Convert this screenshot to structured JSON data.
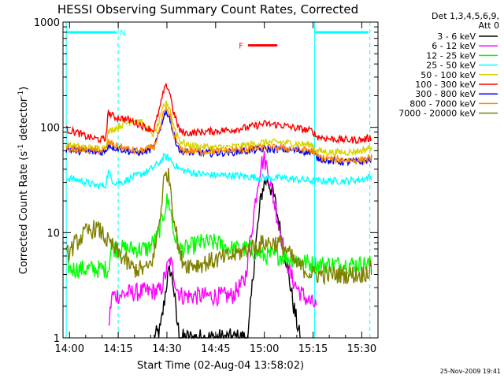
{
  "chart_data": {
    "type": "line",
    "title": "HESSI Observing Summary Count Rates, Corrected",
    "xlabel": "Start Time (02-Aug-04 13:58:02)",
    "ylabel": "Corrected Count Rate (s",
    "ylabel_sup1": "-1",
    "ylabel_mid": " detector",
    "ylabel_sup2": "-1",
    "ylabel_end": ")",
    "y_scale": "log",
    "ylim": [
      1,
      1000
    ],
    "xlim_minutes": [
      -2,
      95
    ],
    "x_unit_note": "minutes after 14:00",
    "x_ticks": [
      {
        "m": 0,
        "label": "14:00"
      },
      {
        "m": 15,
        "label": "14:15"
      },
      {
        "m": 30,
        "label": "14:30"
      },
      {
        "m": 45,
        "label": "14:45"
      },
      {
        "m": 60,
        "label": "15:00"
      },
      {
        "m": 75,
        "label": "15:15"
      },
      {
        "m": 90,
        "label": "15:30"
      }
    ],
    "y_ticks": [
      {
        "v": 1,
        "label": "1"
      },
      {
        "v": 10,
        "label": "10"
      },
      {
        "v": 100,
        "label": "100"
      },
      {
        "v": 1000,
        "label": "1000"
      }
    ],
    "legend_header": [
      "Det 1,3,4,5,6,9,",
      "Att 0"
    ],
    "series": [
      {
        "name": "3 - 6 keV",
        "color": "#000000",
        "x": [
          26,
          28,
          29,
          30,
          31,
          32,
          33,
          34,
          55,
          57,
          59,
          60,
          61,
          63,
          65,
          67,
          69,
          71
        ],
        "y": [
          1,
          1.2,
          2,
          3.5,
          4.5,
          3.2,
          1.5,
          1,
          1,
          6,
          22,
          30,
          32,
          22,
          10,
          5,
          2,
          1
        ]
      },
      {
        "name": "6 - 12 keV",
        "color": "#ff00ff",
        "x": [
          12,
          13,
          20,
          28,
          29,
          30,
          31,
          32,
          33,
          34,
          35,
          50,
          54,
          56,
          58,
          59,
          60,
          61,
          62,
          64,
          66,
          68,
          70,
          72,
          74,
          76
        ],
        "y": [
          1.2,
          2.5,
          2.7,
          2.8,
          3.5,
          4.5,
          5.5,
          4.2,
          3,
          2.6,
          2.5,
          2.5,
          3.5,
          10,
          30,
          45,
          50,
          40,
          28,
          14,
          7,
          4,
          3,
          2.5,
          2.2,
          2
        ]
      },
      {
        "name": "12 - 25 keV",
        "color": "#00ff00",
        "x": [
          -1,
          0,
          5,
          10,
          12,
          13,
          14,
          16,
          20,
          24,
          27,
          29,
          30,
          31,
          32,
          34,
          36,
          40,
          45,
          50,
          55,
          60,
          65,
          70,
          75,
          80,
          85,
          93
        ],
        "y": [
          6,
          4.5,
          4.5,
          4.5,
          4.5,
          8,
          7,
          7,
          7,
          7,
          9,
          15,
          20,
          18,
          10,
          7,
          7,
          8,
          8,
          7,
          7,
          6,
          6,
          5.5,
          5,
          5,
          5,
          5
        ]
      },
      {
        "name": "25 - 50 keV",
        "color": "#00ffff",
        "x": [
          -1,
          2,
          5,
          8,
          11,
          12,
          13,
          14,
          16,
          18,
          20,
          22,
          24,
          26,
          28,
          29,
          30,
          31,
          32,
          34,
          36,
          40,
          45,
          50,
          55,
          60,
          65,
          70,
          75,
          80,
          85,
          90,
          93
        ],
        "y": [
          33,
          32,
          30,
          28,
          28,
          38,
          32,
          30,
          30,
          32,
          34,
          36,
          38,
          42,
          47,
          52,
          52,
          50,
          45,
          40,
          38,
          36,
          35,
          35,
          34,
          33,
          33,
          32,
          31,
          31,
          31,
          32,
          34
        ]
      },
      {
        "name": "50 - 100 keV",
        "color": "#d4d400",
        "x": [
          -1,
          2,
          5,
          8,
          11,
          12,
          13,
          14,
          16,
          18,
          20,
          22,
          24,
          26,
          28,
          29,
          30,
          31,
          32,
          34,
          36,
          40,
          45,
          50,
          55,
          60,
          65,
          70,
          75,
          76,
          80,
          85,
          90,
          93
        ],
        "y": [
          68,
          66,
          64,
          63,
          65,
          90,
          95,
          98,
          105,
          112,
          118,
          112,
          98,
          85,
          120,
          160,
          170,
          150,
          105,
          75,
          68,
          66,
          64,
          65,
          68,
          72,
          72,
          70,
          68,
          60,
          58,
          58,
          60,
          65
        ]
      },
      {
        "name": "100 - 300 keV",
        "color": "#ff0000",
        "x": [
          -1,
          2,
          5,
          8,
          11,
          12,
          13,
          14,
          16,
          18,
          20,
          22,
          24,
          26,
          28,
          29,
          30,
          31,
          32,
          34,
          36,
          40,
          45,
          50,
          55,
          60,
          65,
          70,
          75,
          76,
          80,
          85,
          90,
          93
        ],
        "y": [
          95,
          90,
          82,
          78,
          76,
          140,
          130,
          125,
          122,
          118,
          112,
          105,
          98,
          95,
          160,
          220,
          250,
          210,
          140,
          92,
          88,
          90,
          92,
          95,
          100,
          108,
          105,
          98,
          92,
          82,
          78,
          76,
          76,
          80
        ]
      },
      {
        "name": "300 - 800 keV",
        "color": "#0000ff",
        "x": [
          -1,
          2,
          5,
          8,
          11,
          12,
          13,
          14,
          16,
          18,
          20,
          22,
          24,
          26,
          28,
          29,
          30,
          31,
          32,
          34,
          36,
          40,
          45,
          50,
          55,
          60,
          65,
          70,
          75,
          76,
          80,
          85,
          90,
          93
        ],
        "y": [
          62,
          60,
          59,
          58,
          58,
          68,
          66,
          64,
          62,
          60,
          58,
          58,
          60,
          64,
          95,
          130,
          140,
          120,
          85,
          60,
          58,
          57,
          57,
          58,
          60,
          62,
          62,
          60,
          58,
          52,
          48,
          47,
          47,
          50
        ]
      },
      {
        "name": "800 - 7000 keV",
        "color": "#ff8800",
        "x": [
          -1,
          2,
          5,
          8,
          11,
          12,
          13,
          14,
          16,
          18,
          20,
          22,
          24,
          26,
          28,
          29,
          30,
          31,
          32,
          34,
          36,
          40,
          45,
          50,
          55,
          60,
          65,
          70,
          75,
          76,
          80,
          85,
          90,
          93
        ],
        "y": [
          64,
          62,
          61,
          60,
          60,
          72,
          70,
          67,
          65,
          62,
          60,
          60,
          62,
          66,
          98,
          135,
          145,
          125,
          88,
          62,
          60,
          59,
          59,
          60,
          62,
          64,
          64,
          62,
          60,
          53,
          50,
          49,
          49,
          52
        ]
      },
      {
        "name": "7000 - 20000 keV",
        "color": "#808000",
        "x": [
          -1,
          2,
          5,
          8,
          10,
          12,
          14,
          16,
          18,
          20,
          22,
          24,
          26,
          28,
          29,
          30,
          31,
          32,
          34,
          36,
          40,
          45,
          50,
          55,
          60,
          65,
          70,
          75,
          80,
          85,
          90,
          93
        ],
        "y": [
          6,
          8,
          10,
          11,
          10,
          8,
          7,
          6,
          5,
          4.5,
          4.5,
          4.5,
          6,
          15,
          30,
          38,
          30,
          15,
          6,
          5,
          5,
          5.5,
          6,
          7,
          8,
          8,
          5,
          4,
          4,
          4,
          4,
          4.5
        ]
      }
    ],
    "attenuator_bars": [
      {
        "label": "N",
        "color": "#00ffff",
        "x": [
          -1,
          14.5
        ],
        "y": 800
      },
      {
        "label": "",
        "color": "#00ffff",
        "x": [
          75.5,
          92
        ],
        "y": 800
      },
      {
        "label": "F",
        "color": "#ff0000",
        "x": [
          55,
          64
        ],
        "y": 600
      }
    ],
    "night_lines": {
      "color": "#00ffff",
      "dashed_x": [
        15,
        92.5
      ],
      "solid_x": [
        -1,
        75.5
      ]
    },
    "date_stamp": "25-Nov-2009 19:41"
  }
}
